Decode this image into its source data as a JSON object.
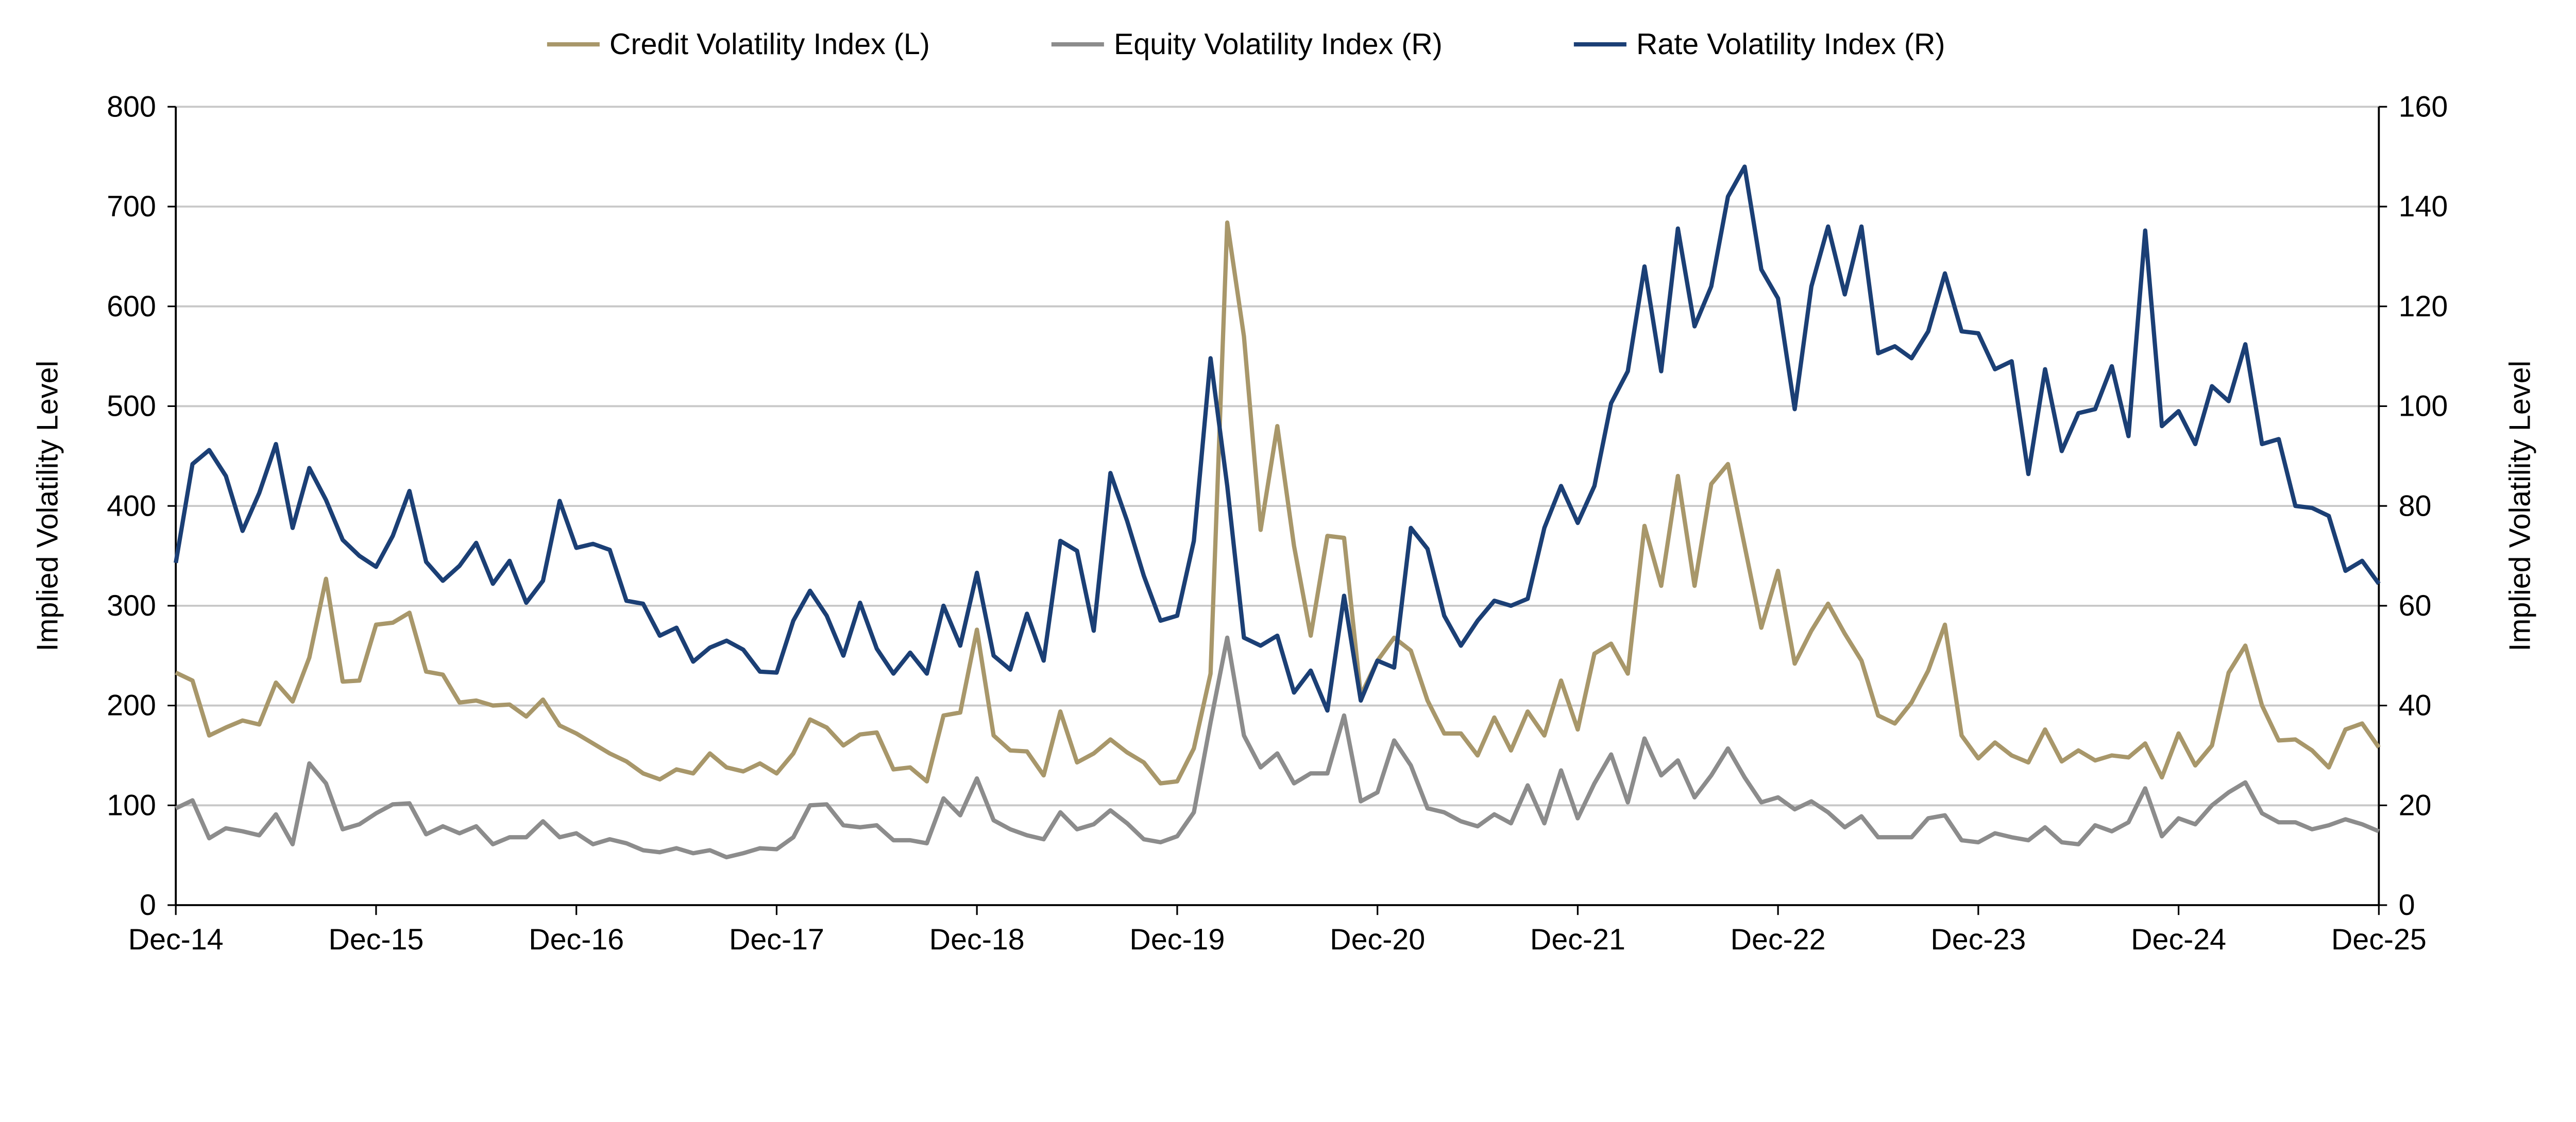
{
  "chart_data": {
    "type": "line",
    "title": "",
    "xlabel": "",
    "ylabel_left": "Implied Volatility Level",
    "ylabel_right": "Implied Volatility Level",
    "ylim_left": [
      0,
      800
    ],
    "ylim_right": [
      0,
      160
    ],
    "yticks_left": [
      "0",
      "100",
      "200",
      "300",
      "400",
      "500",
      "600",
      "700",
      "800"
    ],
    "yticks_right": [
      "0",
      "20",
      "40",
      "60",
      "80",
      "100",
      "120",
      "140",
      "160"
    ],
    "x_start": "Dec-14",
    "x_frequency": "monthly",
    "xticks": [
      "Dec-14",
      "Dec-15",
      "Dec-16",
      "Dec-17",
      "Dec-18",
      "Dec-19",
      "Dec-20",
      "Dec-21",
      "Dec-22",
      "Dec-23",
      "Dec-24",
      "Dec-25"
    ],
    "grid": "horizontal",
    "legend_position": "top",
    "series": [
      {
        "name": "Credit Volatility Index  (L)",
        "axis": "left",
        "color": "#A8976A",
        "values": [
          233,
          225,
          170,
          178,
          185,
          181,
          223,
          204,
          248,
          327,
          224,
          225,
          281,
          283,
          293,
          234,
          231,
          203,
          205,
          200,
          201,
          189,
          206,
          180,
          172,
          162,
          152,
          144,
          132,
          126,
          136,
          132,
          152,
          138,
          134,
          142,
          132,
          152,
          186,
          178,
          160,
          171,
          173,
          136,
          138,
          124,
          190,
          193,
          276,
          170,
          155,
          154,
          130,
          194,
          143,
          152,
          166,
          153,
          143,
          122,
          124,
          157,
          232,
          684,
          570,
          376,
          480,
          360,
          270,
          370,
          368,
          210,
          245,
          268,
          255,
          205,
          172,
          172,
          150,
          188,
          155,
          194,
          170,
          225,
          176,
          252,
          262,
          232,
          380,
          320,
          430,
          320,
          422,
          442,
          360,
          278,
          335,
          242,
          275,
          302,
          272,
          245,
          190,
          182,
          203,
          235,
          281,
          170,
          147,
          163,
          150,
          143,
          176,
          144,
          155,
          145,
          150,
          148,
          162,
          128,
          172,
          140,
          160,
          233,
          260,
          200,
          165,
          166,
          155,
          138,
          176,
          182,
          158
        ]
      },
      {
        "name": "Equity Volatility Index  (R)",
        "axis": "right",
        "color": "#8C8C8C",
        "values": [
          19.4,
          21,
          13.4,
          15.4,
          14.8,
          14,
          18.2,
          12.2,
          28.4,
          24.4,
          15.2,
          16.2,
          18.4,
          20.2,
          20.4,
          14.2,
          15.8,
          14.4,
          15.8,
          12.2,
          13.6,
          13.6,
          16.8,
          13.6,
          14.4,
          12.2,
          13.2,
          12.4,
          11,
          10.6,
          11.4,
          10.4,
          11,
          9.6,
          10.4,
          11.4,
          11.2,
          13.6,
          20,
          20.2,
          16,
          15.6,
          16,
          13,
          13,
          12.4,
          21.4,
          18,
          25.4,
          17,
          15.2,
          14,
          13.2,
          18.6,
          15.2,
          16.2,
          19,
          16.4,
          13.2,
          12.6,
          13.8,
          18.6,
          36.6,
          53.6,
          34,
          27.6,
          30.4,
          24.4,
          26.4,
          26.4,
          38,
          20.8,
          22.6,
          33,
          28,
          19.4,
          18.6,
          16.8,
          15.8,
          18.2,
          16.4,
          24,
          16.4,
          27,
          17.4,
          24.4,
          30.2,
          20.6,
          33.4,
          26,
          29,
          21.6,
          26,
          31.4,
          25.6,
          20.6,
          21.6,
          19.2,
          20.8,
          18.6,
          15.6,
          17.8,
          13.6,
          13.6,
          13.6,
          17.4,
          18,
          13,
          12.6,
          14.4,
          13.6,
          13,
          15.6,
          12.6,
          12.2,
          16,
          14.8,
          16.6,
          23.4,
          13.8,
          17.4,
          16.2,
          20,
          22.6,
          24.6,
          18.4,
          16.6,
          16.6,
          15.2,
          16,
          17.2,
          16.2,
          14.8
        ]
      },
      {
        "name": "Rate Volatility Index  (R)",
        "axis": "right",
        "color": "#1B3F75",
        "values": [
          68.6,
          88.4,
          91.2,
          86,
          75,
          82.6,
          92.4,
          75.6,
          87.6,
          81.2,
          73.2,
          70,
          67.8,
          74,
          83,
          68.8,
          65,
          68,
          72.6,
          64.4,
          69,
          60.6,
          65,
          81,
          71.6,
          72.4,
          71.2,
          61,
          60.4,
          54,
          55.6,
          48.8,
          51.6,
          53,
          51.2,
          46.8,
          46.6,
          57,
          63,
          58,
          50,
          60.6,
          51.4,
          46.4,
          50.6,
          46.4,
          60,
          52,
          66.6,
          50,
          47.2,
          58.4,
          49,
          73,
          71,
          55,
          86.6,
          77,
          66,
          57,
          58,
          73,
          109.6,
          84,
          53.6,
          52,
          54,
          42.6,
          47,
          39,
          62,
          41,
          49,
          47.6,
          75.6,
          71.4,
          58,
          52,
          57,
          61,
          60,
          61.4,
          75.6,
          84,
          76.6,
          84,
          100.6,
          107,
          128,
          107,
          135.6,
          116,
          124,
          142,
          148,
          127.4,
          121.6,
          99.4,
          124,
          136,
          122.4,
          136,
          110.6,
          112,
          109.6,
          115,
          126.6,
          115,
          114.6,
          107.4,
          109,
          86.4,
          107.4,
          91,
          98.6,
          99.4,
          108,
          94,
          135.2,
          96,
          99,
          92.4,
          104,
          101,
          112.4,
          92.4,
          93.4,
          80,
          79.6,
          78,
          67,
          69,
          64.4
        ]
      }
    ]
  }
}
